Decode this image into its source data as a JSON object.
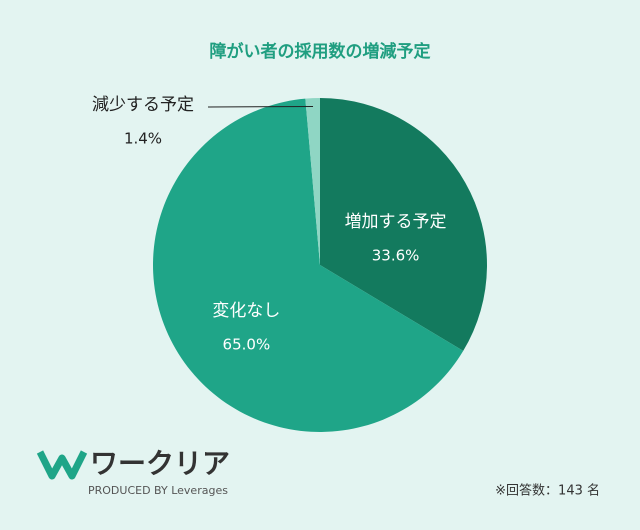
{
  "chart_data": {
    "type": "pie",
    "title": "障がい者の採用数の増減予定",
    "categories": [
      "増加する予定",
      "変化なし",
      "減少する予定"
    ],
    "values": [
      33.6,
      65.0,
      1.4
    ],
    "value_labels": [
      "33.6%",
      "65.0%",
      "1.4%"
    ],
    "colors": [
      "#137a5e",
      "#1fa588",
      "#8fd6c4"
    ]
  },
  "footer": {
    "logo": "ワークリア",
    "produced_by": "PRODUCED BY Leverages",
    "note": "※回答数：143 名"
  }
}
